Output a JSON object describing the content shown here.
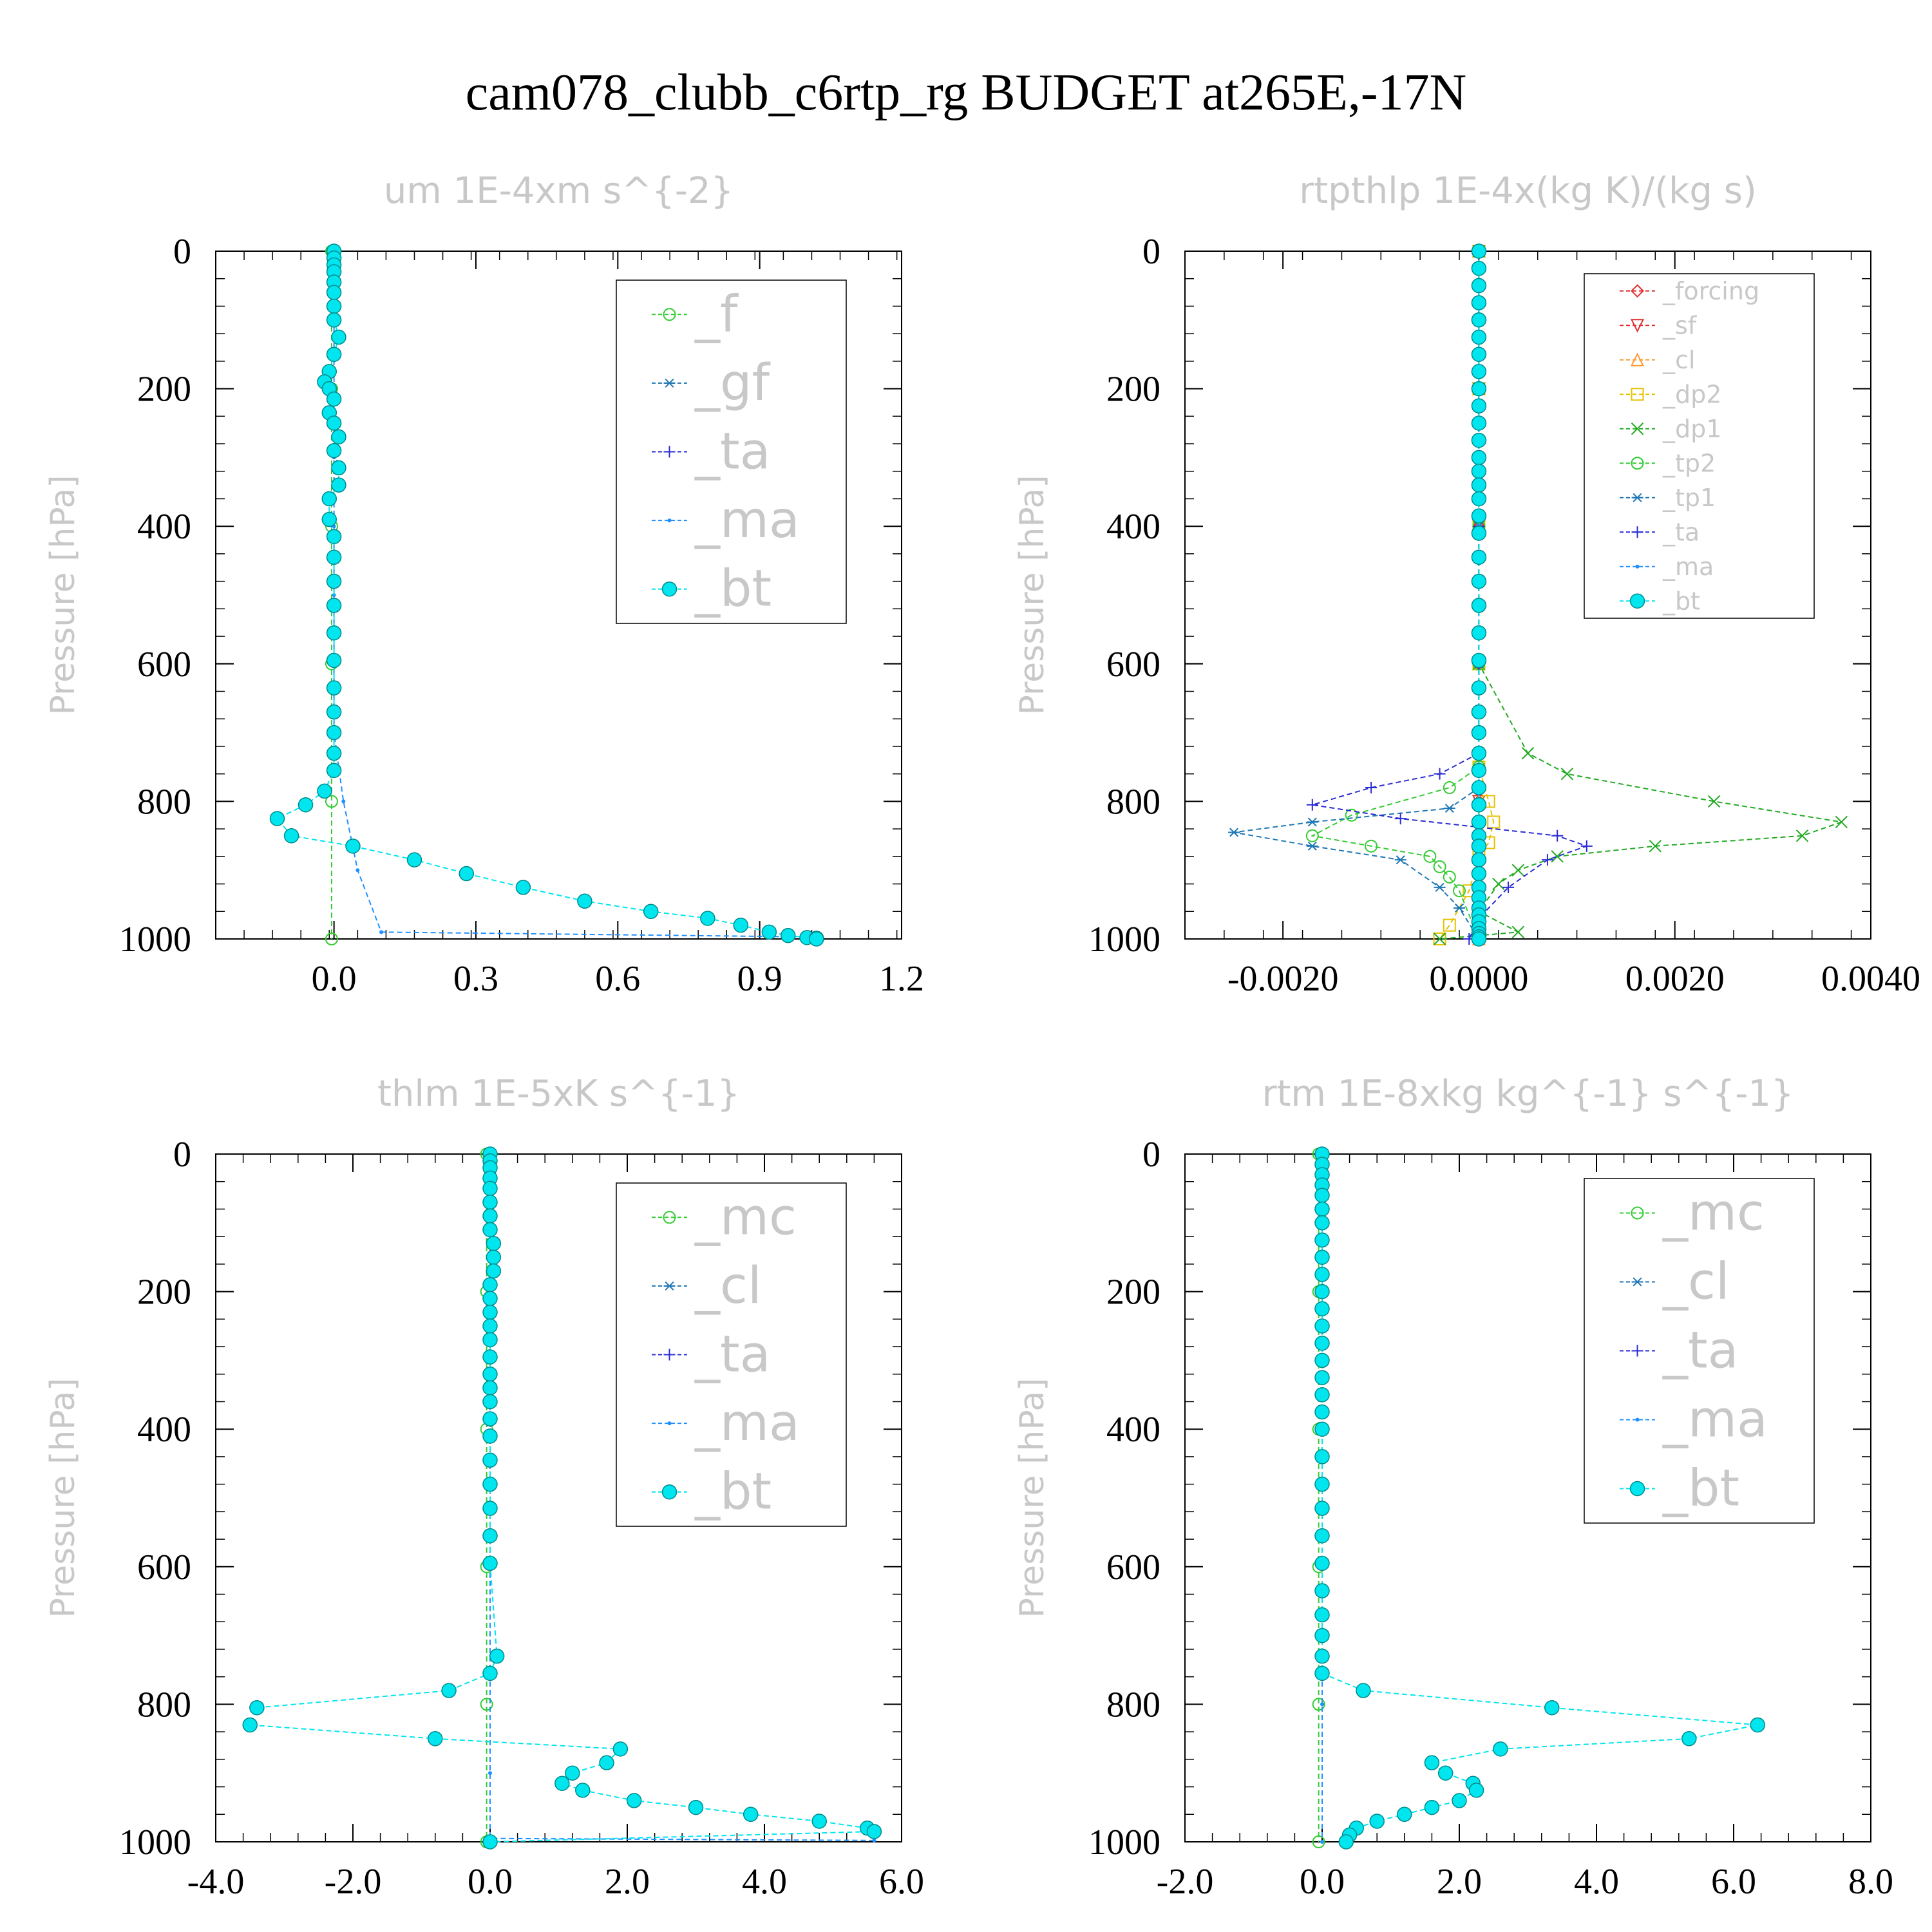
{
  "figure": {
    "title": "cam078_clubb_c6rtp_rg  BUDGET at265E,-17N"
  },
  "colors": {
    "_f": "#33cc33",
    "_gf": "#1f77b4",
    "_ta": "#2b2bd6",
    "_ma": "#1e90ff",
    "_bt": "#00e5ee",
    "_mc": "#33cc33",
    "_cl": "#1f77b4",
    "_forcing": "#e03030",
    "_sf": "#e03030",
    "_cl_orange": "#ff9933",
    "_dp2": "#e6c200",
    "_dp1": "#22aa22",
    "_tp2": "#33cc33",
    "_tp1": "#1f77b4"
  },
  "chart_data": [
    {
      "type": "line",
      "title": "um   1E-4xm s^{-2}",
      "ylabel": "Pressure [hPa]",
      "xlim": [
        -0.25,
        1.2
      ],
      "ylim": [
        1000,
        0
      ],
      "xticks": [
        "0.0",
        "0.3",
        "0.6",
        "0.9",
        "1.2"
      ],
      "xtick_values": [
        0.0,
        0.3,
        0.6,
        0.9,
        1.2
      ],
      "yticks": [
        "0",
        "200",
        "400",
        "600",
        "800",
        "1000"
      ],
      "ytick_values": [
        0,
        200,
        400,
        600,
        800,
        1000
      ],
      "legend_entries": [
        "_f",
        "_gf",
        "_ta",
        "_ma",
        "_bt"
      ],
      "legend_size": "large",
      "series": [
        {
          "name": "_f",
          "style": "circle",
          "color": "#33cc33",
          "x": [
            -0.005,
            -0.005,
            -0.005,
            -0.005,
            -0.005,
            -0.005
          ],
          "y": [
            0,
            200,
            400,
            600,
            800,
            1000
          ]
        },
        {
          "name": "_ma",
          "style": "dot",
          "color": "#1e90ff",
          "x": [
            0,
            0,
            0,
            0,
            0,
            0,
            0,
            0,
            0.02,
            0.05,
            0.1,
            1.0
          ],
          "y": [
            0,
            100,
            200,
            300,
            400,
            500,
            600,
            700,
            800,
            900,
            990,
            997
          ]
        },
        {
          "name": "_bt",
          "style": "filled",
          "color": "#00e5ee",
          "x": [
            0,
            0,
            0,
            0,
            0,
            0,
            0,
            0,
            0.01,
            0.0,
            -0.01,
            -0.02,
            -0.01,
            0.0,
            -0.01,
            0.0,
            0.01,
            0.0,
            0.01,
            0.01,
            -0.01,
            -0.01,
            0.0,
            0.0,
            0.0,
            0.0,
            0.0,
            0.0,
            0.0,
            0.0,
            0.0,
            0.0,
            0.0,
            -0.02,
            -0.06,
            -0.12,
            -0.09,
            0.04,
            0.17,
            0.28,
            0.4,
            0.53,
            0.67,
            0.79,
            0.86,
            0.92,
            0.96,
            1.0,
            1.02,
            1.02
          ],
          "y": [
            0,
            10,
            20,
            30,
            45,
            60,
            80,
            100,
            125,
            150,
            175,
            190,
            200,
            215,
            235,
            250,
            270,
            290,
            315,
            340,
            360,
            390,
            415,
            445,
            480,
            515,
            555,
            595,
            635,
            670,
            700,
            730,
            755,
            785,
            805,
            825,
            850,
            865,
            885,
            905,
            925,
            945,
            960,
            970,
            980,
            990,
            995,
            998,
            999,
            1000
          ]
        }
      ]
    },
    {
      "type": "line",
      "title": "rtpthlp   1E-4x(kg K)/(kg s)",
      "ylabel": "Pressure [hPa]",
      "xlim": [
        -0.003,
        0.004
      ],
      "ylim": [
        1000,
        0
      ],
      "xticks": [
        "-0.0020",
        "0.0000",
        "0.0020",
        "0.0040"
      ],
      "xtick_values": [
        -0.002,
        0.0,
        0.002,
        0.004
      ],
      "yticks": [
        "0",
        "200",
        "400",
        "600",
        "800",
        "1000"
      ],
      "ytick_values": [
        0,
        200,
        400,
        600,
        800,
        1000
      ],
      "legend_entries": [
        "_forcing",
        "_sf",
        "_cl",
        "_dp2",
        "_dp1",
        "_tp2",
        "_tp1",
        "_ta",
        "_ma",
        "_bt"
      ],
      "legend_size": "small",
      "series": [
        {
          "name": "_forcing",
          "style": "diamond",
          "color": "#e03030",
          "x": [
            0,
            0,
            0,
            0,
            0,
            0
          ],
          "y": [
            0,
            200,
            400,
            600,
            800,
            1000
          ]
        },
        {
          "name": "_sf",
          "style": "triangle-down",
          "color": "#e03030",
          "x": [
            0,
            0,
            0,
            0,
            0,
            0
          ],
          "y": [
            0,
            200,
            400,
            600,
            800,
            1000
          ]
        },
        {
          "name": "_cl",
          "style": "triangle",
          "color": "#ff9933",
          "x": [
            0,
            0,
            0,
            0,
            0,
            0
          ],
          "y": [
            0,
            200,
            400,
            600,
            800,
            1000
          ]
        },
        {
          "name": "_dp2",
          "style": "square",
          "color": "#e6c200",
          "x": [
            0,
            0,
            0,
            0,
            0,
            0.0001,
            0.00015,
            0.0001,
            0.0,
            -0.0001,
            -0.0003,
            -0.0004
          ],
          "y": [
            0,
            200,
            400,
            600,
            750,
            800,
            830,
            860,
            880,
            930,
            980,
            1000
          ]
        },
        {
          "name": "_dp1",
          "style": "x",
          "color": "#22aa22",
          "x": [
            0,
            0,
            0,
            0,
            0.0005,
            0.0009,
            0.0024,
            0.0037,
            0.0033,
            0.0018,
            0.0008,
            0.0004,
            0.0002,
            0.0,
            0.0004,
            -0.0004
          ],
          "y": [
            0,
            200,
            400,
            600,
            730,
            760,
            800,
            830,
            850,
            865,
            880,
            900,
            920,
            960,
            990,
            1000
          ]
        },
        {
          "name": "_tp2",
          "style": "circle",
          "color": "#33cc33",
          "x": [
            0,
            0,
            0,
            0,
            0,
            -0.0003,
            -0.0013,
            -0.0017,
            -0.0011,
            -0.0005,
            -0.0004,
            -0.0003,
            -0.0002,
            0.0
          ],
          "y": [
            0,
            200,
            400,
            600,
            750,
            780,
            820,
            850,
            865,
            880,
            895,
            910,
            930,
            1000
          ]
        },
        {
          "name": "_tp1",
          "style": "asterisk",
          "color": "#1f77b4",
          "x": [
            0,
            0,
            0,
            0,
            0,
            -0.0003,
            -0.0017,
            -0.0025,
            -0.0017,
            -0.0008,
            -0.0004,
            -0.0002,
            0.0
          ],
          "y": [
            0,
            200,
            400,
            600,
            780,
            810,
            830,
            845,
            865,
            885,
            925,
            955,
            1000
          ]
        },
        {
          "name": "_ta",
          "style": "plus",
          "color": "#2b2bd6",
          "x": [
            0,
            0,
            0,
            0,
            0,
            -0.0004,
            -0.0011,
            -0.0017,
            -0.0008,
            0.0008,
            0.0011,
            0.0007,
            0.0003,
            0.0,
            -0.0001
          ],
          "y": [
            0,
            200,
            400,
            600,
            730,
            760,
            780,
            805,
            825,
            850,
            865,
            885,
            925,
            970,
            1000
          ]
        },
        {
          "name": "_ma",
          "style": "dot",
          "color": "#1e90ff",
          "x": [
            0,
            0,
            0,
            0,
            0,
            0
          ],
          "y": [
            0,
            200,
            400,
            600,
            800,
            1000
          ]
        },
        {
          "name": "_bt",
          "style": "filled",
          "color": "#00e5ee",
          "x": [
            0,
            0,
            0,
            0,
            0,
            0,
            0,
            0,
            0,
            0,
            0,
            0,
            0,
            0,
            0,
            0,
            0,
            0,
            0,
            0,
            0,
            0,
            0,
            0,
            0,
            0,
            0,
            0,
            0,
            0,
            0,
            0,
            0,
            0,
            0,
            0,
            0,
            0,
            0,
            0,
            0,
            0,
            0,
            0
          ],
          "y": [
            0,
            25,
            50,
            75,
            100,
            125,
            150,
            175,
            200,
            225,
            250,
            275,
            300,
            320,
            340,
            360,
            385,
            410,
            445,
            480,
            515,
            555,
            595,
            635,
            670,
            700,
            730,
            755,
            780,
            805,
            830,
            850,
            865,
            885,
            905,
            925,
            940,
            955,
            965,
            975,
            985,
            992,
            997,
            1000
          ]
        }
      ]
    },
    {
      "type": "line",
      "title": "thlm   1E-5xK s^{-1}",
      "ylabel": "Pressure [hPa]",
      "xlim": [
        -4.0,
        6.0
      ],
      "ylim": [
        1000,
        0
      ],
      "xticks": [
        "-4.0",
        "-2.0",
        "0.0",
        "2.0",
        "4.0",
        "6.0"
      ],
      "xtick_values": [
        -4.0,
        -2.0,
        0.0,
        2.0,
        4.0,
        6.0
      ],
      "yticks": [
        "0",
        "200",
        "400",
        "600",
        "800",
        "1000"
      ],
      "ytick_values": [
        0,
        200,
        400,
        600,
        800,
        1000
      ],
      "legend_entries": [
        "_mc",
        "_cl",
        "_ta",
        "_ma",
        "_bt"
      ],
      "legend_size": "large",
      "series": [
        {
          "name": "_mc",
          "style": "circle",
          "color": "#33cc33",
          "x": [
            -0.05,
            -0.05,
            -0.05,
            -0.05,
            -0.05,
            -0.05
          ],
          "y": [
            0,
            200,
            400,
            600,
            800,
            1000
          ]
        },
        {
          "name": "_ma",
          "style": "dot",
          "color": "#1e90ff",
          "x": [
            0,
            0,
            0,
            0,
            0,
            5.6
          ],
          "y": [
            0,
            300,
            600,
            900,
            995,
            998
          ]
        },
        {
          "name": "_bt",
          "style": "filled",
          "color": "#00e5ee",
          "x": [
            0,
            0,
            0,
            0,
            0,
            0,
            0,
            0,
            0.05,
            0.05,
            0.05,
            0.0,
            0.0,
            0.0,
            0.0,
            0.0,
            0.0,
            0.0,
            0.0,
            0.0,
            0.0,
            0.0,
            0.0,
            0.0,
            0.0,
            0.0,
            0.0,
            0.1,
            0.0,
            -0.6,
            -3.4,
            -3.5,
            -0.8,
            1.9,
            1.7,
            1.2,
            1.05,
            1.35,
            2.1,
            3.0,
            3.8,
            4.8,
            5.5,
            5.6,
            0.0
          ],
          "y": [
            0,
            10,
            20,
            35,
            50,
            70,
            90,
            110,
            130,
            150,
            170,
            190,
            210,
            230,
            250,
            270,
            295,
            320,
            340,
            360,
            385,
            410,
            445,
            480,
            515,
            555,
            595,
            730,
            755,
            780,
            805,
            830,
            850,
            865,
            885,
            900,
            915,
            925,
            940,
            950,
            960,
            970,
            980,
            985,
            1000
          ]
        }
      ]
    },
    {
      "type": "line",
      "title": "rtm   1E-8xkg kg^{-1} s^{-1}",
      "ylabel": "Pressure [hPa]",
      "xlim": [
        -2.0,
        8.0
      ],
      "ylim": [
        1000,
        0
      ],
      "xticks": [
        "-2.0",
        "0.0",
        "2.0",
        "4.0",
        "6.0",
        "8.0"
      ],
      "xtick_values": [
        -2.0,
        0.0,
        2.0,
        4.0,
        6.0,
        8.0
      ],
      "yticks": [
        "0",
        "200",
        "400",
        "600",
        "800",
        "1000"
      ],
      "ytick_values": [
        0,
        200,
        400,
        600,
        800,
        1000
      ],
      "legend_entries": [
        "_mc",
        "_cl",
        "_ta",
        "_ma",
        "_bt"
      ],
      "legend_size": "large",
      "series": [
        {
          "name": "_mc",
          "style": "circle",
          "color": "#33cc33",
          "x": [
            -0.05,
            -0.05,
            -0.05,
            -0.05,
            -0.05,
            -0.05
          ],
          "y": [
            0,
            200,
            400,
            600,
            800,
            1000
          ]
        },
        {
          "name": "_ma",
          "style": "dot",
          "color": "#1e90ff",
          "x": [
            0,
            0,
            0,
            0,
            0,
            0
          ],
          "y": [
            0,
            200,
            400,
            600,
            800,
            1000
          ]
        },
        {
          "name": "_bt",
          "style": "filled",
          "color": "#00e5ee",
          "x": [
            0,
            0,
            0,
            0,
            0,
            0,
            0,
            0,
            0,
            0,
            0,
            0,
            0,
            0,
            0,
            0,
            0,
            0,
            0,
            0,
            0,
            0,
            0,
            0,
            0,
            0,
            0,
            0,
            0,
            0.6,
            3.35,
            6.35,
            5.35,
            2.6,
            1.6,
            1.8,
            2.2,
            2.25,
            2.0,
            1.6,
            1.2,
            0.8,
            0.5,
            0.4,
            0.35
          ],
          "y": [
            0,
            15,
            30,
            45,
            60,
            80,
            100,
            125,
            150,
            175,
            200,
            225,
            250,
            275,
            300,
            325,
            350,
            375,
            400,
            440,
            480,
            515,
            555,
            595,
            635,
            670,
            700,
            730,
            755,
            780,
            805,
            830,
            850,
            865,
            885,
            900,
            915,
            925,
            940,
            950,
            960,
            970,
            980,
            990,
            1000
          ]
        }
      ]
    }
  ]
}
